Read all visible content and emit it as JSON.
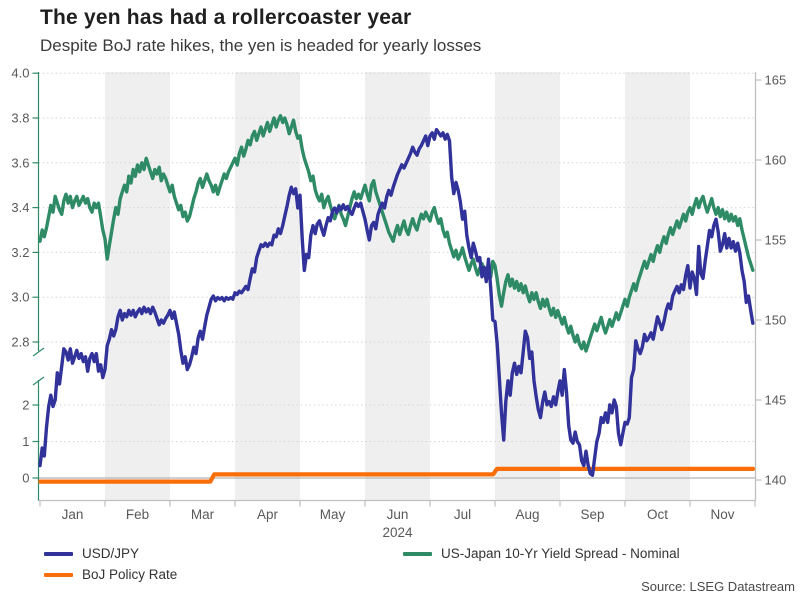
{
  "title": "The yen has had a rollercoaster year",
  "subtitle": "Despite BoJ rate hikes, the yen is headed for yearly losses",
  "source": "Source: LSEG Datastream",
  "legend": {
    "usdjpy_label": "USD/JPY",
    "boj_label": "BoJ Policy Rate",
    "spread_label": "US-Japan 10-Yr Yield Spread - Nominal"
  },
  "chart_data": {
    "type": "line",
    "title": "The yen has had a rollercoaster year",
    "subtitle": "Despite BoJ rate hikes, the yen is headed for yearly losses",
    "x_axis": {
      "unit": "months of 2024, fractional month index (0 = Jan 1)",
      "tick_labels": [
        "Jan",
        "Feb",
        "Mar",
        "Apr",
        "May",
        "Jun",
        "Jul",
        "Aug",
        "Sep",
        "Oct",
        "Nov"
      ],
      "year_label": "2024",
      "range_months": [
        0,
        11.07
      ]
    },
    "left_axis": {
      "broken": true,
      "upper_segment_range": [
        2.8,
        4.0
      ],
      "upper_ticks": [
        2.8,
        3.0,
        3.2,
        3.4,
        3.6,
        3.8,
        4.0
      ],
      "upper_tick_labels": [
        "2.8",
        "3.0",
        "3.2",
        "3.4",
        "3.6",
        "3.8",
        "4.0"
      ],
      "lower_ticks": [
        0,
        1,
        2
      ],
      "lower_tick_labels": [
        "0",
        "1",
        "2"
      ]
    },
    "right_axis": {
      "range": [
        140,
        165
      ],
      "ticks": [
        140,
        145,
        150,
        155,
        160,
        165
      ],
      "tick_labels": [
        "140",
        "145",
        "150",
        "155",
        "160",
        "165"
      ]
    },
    "shaded_month_indices": [
      1,
      3,
      5,
      7,
      9
    ],
    "shaded_months": [
      "Feb",
      "Apr",
      "Jun",
      "Aug",
      "Oct"
    ],
    "grid": "dotted horizontal lines at left-axis ticks, solid line at 0",
    "legend_position": "below chart",
    "colors": {
      "band": "#efefef",
      "grid": "#d4d4d4",
      "zero_line": "#b3b3b3",
      "axis_gray": "#bfbfbf",
      "axis_green": "#2e8b66",
      "tick_text": "#595959"
    },
    "series": [
      {
        "name": "USD/JPY",
        "axis": "right",
        "color": "#32329b",
        "x_step": "each month array spans one month at equal spacing",
        "values_per_month": [
          [
            140.9,
            142.0,
            141.5,
            143.3,
            144.6,
            145.3,
            144.6,
            145.0,
            146.7,
            146.0,
            147.1,
            148.2,
            148.0,
            147.5,
            148.2,
            147.3,
            147.7,
            148.1,
            147.6,
            147.9,
            147.4,
            147.7,
            146.8,
            147.6,
            147.9,
            147.4,
            147.9,
            146.8,
            147.2,
            146.4
          ],
          [
            146.9,
            148.4,
            148.8,
            149.4,
            149.0,
            149.4,
            150.2,
            150.6,
            150.0,
            150.4,
            150.2,
            150.6,
            150.3,
            150.6,
            150.2,
            150.5,
            150.7,
            150.4,
            150.8,
            150.5,
            150.7,
            150.4,
            150.8,
            150.5,
            150.1,
            149.7,
            150.0,
            149.8,
            150.1,
            150.3
          ],
          [
            150.6,
            150.1,
            150.5,
            149.8,
            149.1,
            148.1,
            147.3,
            147.7,
            146.9,
            147.2,
            147.7,
            148.3,
            147.9,
            148.9,
            149.3,
            148.8,
            149.6,
            150.3,
            150.8,
            151.3,
            151.5,
            151.2,
            151.4,
            151.3,
            151.4,
            151.2,
            151.4,
            151.3,
            151.4,
            151.3
          ],
          [
            151.7,
            151.6,
            151.8,
            151.7,
            151.9,
            152.1,
            151.9,
            152.6,
            153.2,
            153.0,
            153.9,
            154.3,
            154.7,
            154.6,
            154.8,
            154.6,
            154.8,
            154.7,
            155.3,
            155.2,
            155.7,
            155.4,
            155.9,
            156.5,
            157.1,
            157.8,
            158.3,
            157.9,
            158.2,
            157.0
          ],
          [
            157.8,
            155.1,
            153.1,
            154.1,
            153.9,
            155.3,
            155.9,
            155.4,
            156.0,
            156.2,
            155.7,
            155.3,
            155.9,
            156.4,
            156.2,
            156.8,
            157.0,
            156.7,
            157.1,
            156.9,
            157.2,
            156.9,
            157.1,
            156.8,
            156.6,
            157.0,
            157.3,
            157.1,
            157.3,
            156.8
          ],
          [
            156.3,
            155.6,
            155.0,
            155.9,
            156.1,
            155.7,
            156.6,
            157.0,
            157.3,
            157.0,
            157.7,
            158.1,
            157.8,
            158.3,
            158.7,
            159.1,
            159.4,
            159.7,
            159.5,
            159.8,
            160.1,
            160.4,
            160.8,
            160.5,
            160.3,
            160.7,
            160.9,
            161.2,
            161.5,
            160.9
          ],
          [
            161.5,
            161.7,
            161.3,
            161.9,
            161.7,
            161.5,
            161.7,
            161.3,
            161.6,
            161.2,
            158.9,
            157.9,
            158.6,
            158.1,
            157.4,
            156.3,
            156.8,
            155.3,
            154.5,
            153.9,
            154.8,
            154.3,
            153.7,
            153.9,
            152.7,
            153.3,
            152.4,
            153.8,
            152.0,
            150.0
          ],
          [
            149.9,
            148.5,
            146.4,
            144.2,
            142.5,
            144.9,
            146.2,
            145.3,
            146.7,
            147.3,
            146.6,
            147.1,
            146.7,
            148.0,
            149.3,
            148.9,
            147.6,
            148.0,
            146.2,
            145.2,
            144.4,
            143.9,
            144.9,
            145.5,
            144.7,
            144.9,
            144.6,
            145.2,
            144.7,
            145.5
          ],
          [
            146.2,
            145.3,
            146.9,
            145.5,
            143.4,
            142.5,
            142.3,
            143.0,
            142.4,
            142.2,
            141.2,
            140.9,
            141.8,
            140.9,
            140.4,
            140.3,
            141.4,
            142.4,
            142.9,
            143.9,
            143.6,
            144.2,
            143.6,
            144.7,
            144.2,
            145.0,
            144.6,
            142.9,
            142.2,
            142.9
          ],
          [
            143.6,
            143.5,
            143.9,
            146.4,
            146.9,
            148.7,
            148.2,
            147.9,
            148.3,
            149.1,
            148.7,
            148.9,
            149.2,
            148.8,
            149.5,
            150.2,
            149.8,
            149.4,
            149.9,
            150.6,
            151.0,
            150.7,
            151.5,
            151.8,
            152.1,
            151.7,
            152.2,
            151.9,
            152.8,
            153.4
          ],
          [
            152.0,
            153.0,
            152.6,
            151.6,
            154.6,
            152.9,
            152.6,
            153.7,
            154.6,
            155.6,
            155.2,
            155.9,
            156.3,
            155.5,
            154.3,
            154.7,
            155.4,
            154.5,
            155.1,
            154.5,
            154.9,
            154.3,
            154.8,
            154.2,
            153.1,
            152.4,
            151.1,
            151.5,
            150.6,
            149.8
          ]
        ]
      },
      {
        "name": "BoJ Policy Rate",
        "axis": "left-lower",
        "color": "#fa6e0a",
        "points": [
          [
            0,
            -0.1
          ],
          [
            2.62,
            -0.1
          ],
          [
            2.68,
            0.1
          ],
          [
            6.97,
            0.1
          ],
          [
            7.03,
            0.25
          ],
          [
            10.97,
            0.25
          ]
        ]
      },
      {
        "name": "US-Japan 10-Yr Yield Spread - Nominal",
        "axis": "left-upper",
        "color": "#2e8b66",
        "x_step": "each month array spans one month at equal spacing",
        "values_per_month": [
          [
            3.25,
            3.3,
            3.27,
            3.31,
            3.36,
            3.41,
            3.38,
            3.45,
            3.42,
            3.39,
            3.37,
            3.43,
            3.46,
            3.42,
            3.45,
            3.4,
            3.43,
            3.45,
            3.41,
            3.43,
            3.45,
            3.42,
            3.44,
            3.4,
            3.38,
            3.42,
            3.4,
            3.42,
            3.36,
            3.3
          ],
          [
            3.26,
            3.17,
            3.23,
            3.29,
            3.35,
            3.4,
            3.37,
            3.44,
            3.47,
            3.5,
            3.47,
            3.54,
            3.51,
            3.57,
            3.54,
            3.59,
            3.56,
            3.6,
            3.57,
            3.62,
            3.59,
            3.56,
            3.53,
            3.57,
            3.55,
            3.58,
            3.52,
            3.55,
            3.53,
            3.5
          ],
          [
            3.47,
            3.5,
            3.45,
            3.42,
            3.39,
            3.41,
            3.36,
            3.38,
            3.34,
            3.36,
            3.4,
            3.44,
            3.47,
            3.51,
            3.53,
            3.49,
            3.52,
            3.55,
            3.52,
            3.5,
            3.47,
            3.5,
            3.46,
            3.49,
            3.52,
            3.55,
            3.53,
            3.56,
            3.58,
            3.6
          ],
          [
            3.62,
            3.59,
            3.64,
            3.67,
            3.63,
            3.66,
            3.7,
            3.68,
            3.72,
            3.74,
            3.7,
            3.73,
            3.76,
            3.72,
            3.75,
            3.78,
            3.74,
            3.77,
            3.8,
            3.76,
            3.79,
            3.81,
            3.78,
            3.8,
            3.77,
            3.73,
            3.76,
            3.79,
            3.74,
            3.71
          ],
          [
            3.72,
            3.66,
            3.62,
            3.59,
            3.56,
            3.52,
            3.54,
            3.48,
            3.45,
            3.43,
            3.46,
            3.4,
            3.43,
            3.45,
            3.41,
            3.38,
            3.35,
            3.38,
            3.41,
            3.37,
            3.35,
            3.32,
            3.36,
            3.4,
            3.44,
            3.47,
            3.44,
            3.46,
            3.44,
            3.47
          ],
          [
            3.5,
            3.46,
            3.43,
            3.5,
            3.52,
            3.47,
            3.44,
            3.41,
            3.38,
            3.35,
            3.32,
            3.29,
            3.27,
            3.25,
            3.29,
            3.32,
            3.28,
            3.31,
            3.34,
            3.3,
            3.28,
            3.32,
            3.35,
            3.32,
            3.3,
            3.34,
            3.37,
            3.35,
            3.38,
            3.36
          ],
          [
            3.34,
            3.38,
            3.4,
            3.36,
            3.33,
            3.35,
            3.3,
            3.27,
            3.29,
            3.24,
            3.21,
            3.18,
            3.21,
            3.17,
            3.19,
            3.22,
            3.18,
            3.15,
            3.12,
            3.15,
            3.17,
            3.13,
            3.1,
            3.13,
            3.15,
            3.12,
            3.09,
            3.12,
            3.09,
            3.16
          ],
          [
            3.14,
            3.08,
            3.01,
            2.96,
            3.02,
            3.07,
            3.1,
            3.05,
            3.08,
            3.04,
            3.07,
            3.03,
            3.06,
            3.02,
            3.05,
            3.01,
            2.98,
            3.02,
            2.99,
            3.02,
            2.98,
            2.95,
            2.99,
            2.96,
            2.99,
            2.95,
            2.92,
            2.95,
            2.91,
            2.94
          ],
          [
            2.91,
            2.88,
            2.91,
            2.87,
            2.84,
            2.87,
            2.83,
            2.8,
            2.83,
            2.79,
            2.77,
            2.8,
            2.76,
            2.79,
            2.82,
            2.85,
            2.88,
            2.85,
            2.88,
            2.91,
            2.87,
            2.84,
            2.87,
            2.9,
            2.87,
            2.9,
            2.93,
            2.9,
            2.93,
            2.96
          ],
          [
            2.99,
            2.96,
            3.0,
            3.03,
            3.06,
            3.03,
            3.07,
            3.1,
            3.13,
            3.16,
            3.13,
            3.16,
            3.19,
            3.16,
            3.2,
            3.23,
            3.2,
            3.24,
            3.27,
            3.24,
            3.28,
            3.31,
            3.28,
            3.31,
            3.34,
            3.31,
            3.34,
            3.37,
            3.34,
            3.38
          ],
          [
            3.4,
            3.37,
            3.41,
            3.44,
            3.4,
            3.43,
            3.45,
            3.41,
            3.38,
            3.41,
            3.44,
            3.4,
            3.37,
            3.4,
            3.36,
            3.39,
            3.35,
            3.38,
            3.34,
            3.37,
            3.34,
            3.36,
            3.32,
            3.35,
            3.3,
            3.26,
            3.22,
            3.18,
            3.15,
            3.12
          ]
        ]
      }
    ]
  }
}
